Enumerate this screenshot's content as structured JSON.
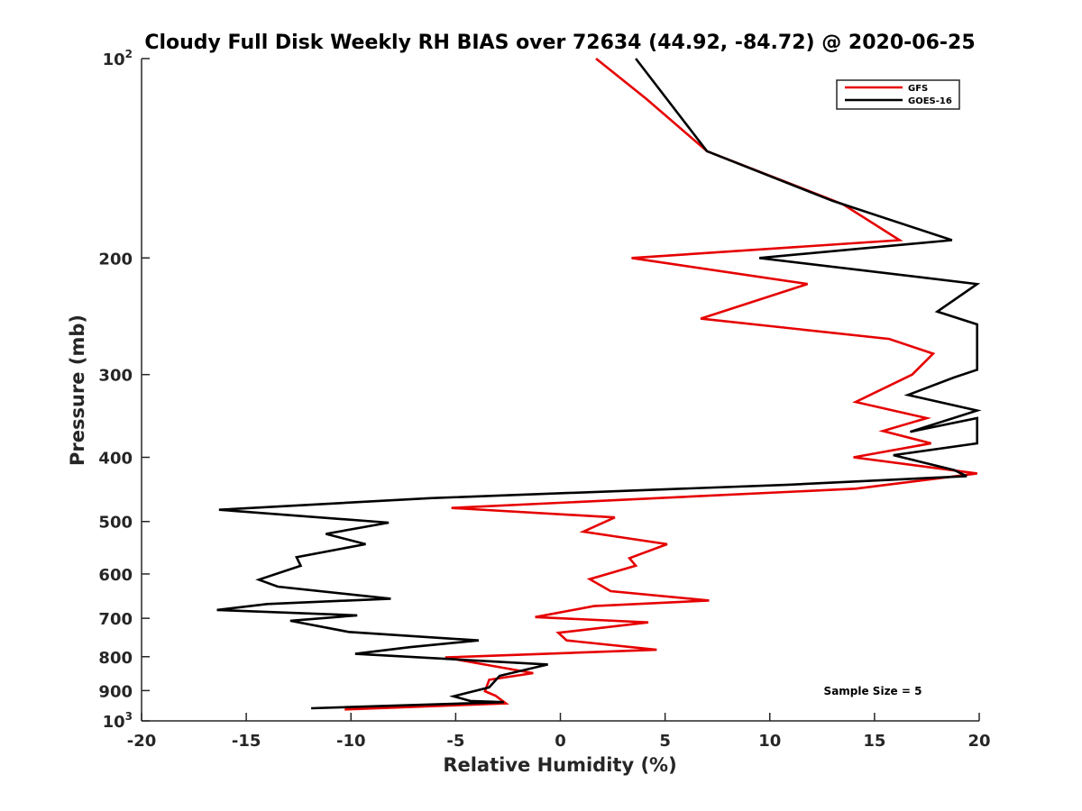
{
  "chart_data": {
    "type": "line",
    "title": "Cloudy Full Disk Weekly RH BIAS over 72634 (44.92, -84.72) @ 2020-06-25",
    "xlabel": "Relative Humidity (%)",
    "ylabel": "Pressure (mb)",
    "xlim": [
      -20,
      20
    ],
    "ylim": [
      100,
      1000
    ],
    "y_scale": "log",
    "y_reversed": true,
    "grid": false,
    "legend_position": "top-right",
    "x_ticks": [
      "-20",
      "-15",
      "-10",
      "-5",
      "0",
      "5",
      "10",
      "15",
      "20"
    ],
    "y_ticks": [
      {
        "value": 100,
        "base": "10",
        "exp": "2"
      },
      {
        "value": 200,
        "label": "200"
      },
      {
        "value": 300,
        "label": "300"
      },
      {
        "value": 400,
        "label": "400"
      },
      {
        "value": 500,
        "label": "500"
      },
      {
        "value": 600,
        "label": "600"
      },
      {
        "value": 700,
        "label": "700"
      },
      {
        "value": 800,
        "label": "800"
      },
      {
        "value": 900,
        "label": "900"
      },
      {
        "value": 1000,
        "base": "10",
        "exp": "3"
      }
    ],
    "annotation": "Sample Size = 5",
    "series": [
      {
        "name": "GFS",
        "color": "#e60000",
        "points": [
          [
            1.7,
            100
          ],
          [
            4.1,
            115
          ],
          [
            7.0,
            138
          ],
          [
            13.5,
            166
          ],
          [
            16.2,
            188
          ],
          [
            3.4,
            200
          ],
          [
            11.8,
            219
          ],
          [
            6.7,
            247
          ],
          [
            15.7,
            265
          ],
          [
            17.8,
            279
          ],
          [
            16.8,
            300
          ],
          [
            14.1,
            330
          ],
          [
            17.5,
            349
          ],
          [
            15.4,
            365
          ],
          [
            17.7,
            381
          ],
          [
            14.0,
            400
          ],
          [
            19.9,
            423
          ],
          [
            14.1,
            446
          ],
          [
            -5.2,
            477
          ],
          [
            2.6,
            493
          ],
          [
            1.1,
            518
          ],
          [
            5.1,
            541
          ],
          [
            3.3,
            568
          ],
          [
            3.6,
            583
          ],
          [
            1.4,
            611
          ],
          [
            2.4,
            637
          ],
          [
            7.1,
            658
          ],
          [
            1.6,
            671
          ],
          [
            -1.2,
            697
          ],
          [
            4.2,
            710
          ],
          [
            -0.1,
            736
          ],
          [
            0.3,
            756
          ],
          [
            4.6,
            781
          ],
          [
            -5.5,
            802
          ],
          [
            -1.3,
            847
          ],
          [
            -3.4,
            867
          ],
          [
            -3.6,
            902
          ],
          [
            -3.1,
            916
          ],
          [
            -2.6,
            941
          ],
          [
            -10.3,
            961
          ]
        ]
      },
      {
        "name": "GOES-16",
        "color": "#000000",
        "points": [
          [
            3.6,
            100
          ],
          [
            7.0,
            138
          ],
          [
            13.0,
            164
          ],
          [
            18.7,
            188
          ],
          [
            9.5,
            200
          ],
          [
            19.9,
            219
          ],
          [
            18.0,
            241
          ],
          [
            19.9,
            252
          ],
          [
            19.9,
            295
          ],
          [
            18.8,
            303
          ],
          [
            16.6,
            322
          ],
          [
            19.9,
            340
          ],
          [
            16.7,
            366
          ],
          [
            19.9,
            349
          ],
          [
            19.9,
            381
          ],
          [
            15.9,
            397
          ],
          [
            18.8,
            418
          ],
          [
            19.4,
            427
          ],
          [
            10.9,
            440
          ],
          [
            -6.2,
            461
          ],
          [
            -16.3,
            480
          ],
          [
            -8.2,
            502
          ],
          [
            -11.2,
            522
          ],
          [
            -9.3,
            541
          ],
          [
            -12.6,
            566
          ],
          [
            -12.4,
            583
          ],
          [
            -14.4,
            612
          ],
          [
            -13.5,
            627
          ],
          [
            -8.1,
            654
          ],
          [
            -14.0,
            666
          ],
          [
            -16.4,
            680
          ],
          [
            -9.7,
            693
          ],
          [
            -12.9,
            706
          ],
          [
            -10.1,
            734
          ],
          [
            -3.9,
            756
          ],
          [
            -7.2,
            774
          ],
          [
            -9.8,
            792
          ],
          [
            -0.6,
            822
          ],
          [
            -2.9,
            855
          ],
          [
            -3.4,
            890
          ],
          [
            -5.1,
            918
          ],
          [
            -4.3,
            933
          ],
          [
            -2.7,
            937
          ],
          [
            -11.9,
            957
          ]
        ]
      }
    ]
  }
}
